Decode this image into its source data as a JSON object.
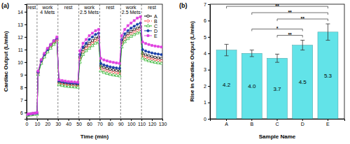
{
  "chart_data": [
    {
      "type": "line",
      "title": "(a)",
      "x_label": "Time (min)",
      "y_label": "Cardiac Output (L/min)",
      "x": [
        0,
        2,
        4,
        6,
        8,
        10,
        11,
        14,
        17,
        20,
        23,
        26,
        29,
        31,
        34,
        37,
        40,
        43,
        46,
        49,
        51,
        54,
        57,
        60,
        63,
        66,
        69,
        71,
        74,
        77,
        80,
        83,
        86,
        89,
        91,
        94,
        97,
        100,
        103,
        106,
        109,
        111,
        114,
        117,
        120,
        123,
        126,
        129
      ],
      "series": [
        {
          "name": "A",
          "color": "#000000",
          "marker": "square",
          "line_style": "solid",
          "values": [
            5.8,
            5.85,
            5.85,
            5.9,
            5.9,
            5.9,
            9.2,
            10.1,
            10.6,
            11.0,
            11.3,
            11.6,
            11.8,
            8.4,
            8.34,
            8.3,
            8.26,
            8.24,
            8.22,
            8.2,
            10.4,
            11.0,
            11.3,
            11.5,
            11.7,
            11.9,
            12.0,
            9.7,
            9.58,
            9.5,
            9.43,
            9.38,
            9.34,
            9.3,
            11.6,
            12.02,
            12.26,
            12.44,
            12.58,
            12.7,
            12.8,
            10.7,
            10.58,
            10.5,
            10.43,
            10.38,
            10.34,
            10.3
          ]
        },
        {
          "name": "B",
          "color": "#ff3030",
          "marker": "circle",
          "line_style": "dashed",
          "values": [
            5.8,
            5.8,
            5.85,
            5.85,
            5.9,
            5.9,
            9.1,
            10.0,
            10.5,
            10.9,
            11.2,
            11.5,
            11.7,
            8.3,
            8.24,
            8.2,
            8.16,
            8.14,
            8.12,
            8.1,
            10.2,
            10.8,
            11.1,
            11.3,
            11.5,
            11.7,
            11.8,
            9.5,
            9.38,
            9.3,
            9.23,
            9.18,
            9.14,
            9.1,
            11.4,
            11.82,
            12.06,
            12.24,
            12.38,
            12.5,
            12.6,
            10.5,
            10.38,
            10.3,
            10.23,
            10.18,
            10.14,
            10.1
          ]
        },
        {
          "name": "C",
          "color": "#22b022",
          "marker": "triangle",
          "line_style": "solid",
          "values": [
            5.75,
            5.8,
            5.8,
            5.85,
            5.85,
            5.85,
            9.0,
            9.9,
            10.4,
            10.8,
            11.1,
            11.4,
            11.6,
            8.2,
            8.14,
            8.1,
            8.06,
            8.04,
            8.02,
            8.0,
            10.0,
            10.6,
            10.9,
            11.1,
            11.3,
            11.5,
            11.6,
            9.3,
            9.18,
            9.1,
            9.03,
            8.98,
            8.94,
            8.9,
            11.2,
            11.62,
            11.86,
            12.04,
            12.18,
            12.3,
            12.4,
            10.3,
            10.18,
            10.1,
            10.03,
            9.98,
            9.94,
            9.9
          ]
        },
        {
          "name": "D",
          "color": "#1a3fa8",
          "marker": "filled_circle",
          "line_style": "solid",
          "values": [
            5.85,
            5.85,
            5.9,
            5.9,
            5.95,
            5.95,
            9.2,
            10.1,
            10.6,
            11.0,
            11.4,
            11.7,
            11.9,
            8.5,
            8.44,
            8.4,
            8.36,
            8.34,
            8.32,
            8.3,
            10.6,
            11.2,
            11.5,
            11.8,
            12.0,
            12.2,
            12.3,
            9.9,
            9.78,
            9.7,
            9.63,
            9.58,
            9.54,
            9.5,
            11.8,
            12.25,
            12.5,
            12.7,
            12.85,
            13.0,
            13.1,
            11.0,
            10.88,
            10.8,
            10.73,
            10.68,
            10.64,
            10.6
          ]
        },
        {
          "name": "E",
          "color": "#e040e0",
          "marker": "filled_square",
          "line_style": "solid",
          "values": [
            5.85,
            5.9,
            5.9,
            5.95,
            5.95,
            6.0,
            9.3,
            10.2,
            10.7,
            11.1,
            11.4,
            11.7,
            12.0,
            8.6,
            8.54,
            8.5,
            8.46,
            8.44,
            8.42,
            8.4,
            10.9,
            11.5,
            11.8,
            12.1,
            12.3,
            12.5,
            12.6,
            10.3,
            10.18,
            10.1,
            10.03,
            9.98,
            9.94,
            9.9,
            12.1,
            12.6,
            12.9,
            13.1,
            13.3,
            13.5,
            13.6,
            11.6,
            11.48,
            11.4,
            11.33,
            11.28,
            11.24,
            11.2
          ]
        }
      ],
      "phases": [
        {
          "label": [
            "rest"
          ],
          "start": 0,
          "end": 10
        },
        {
          "label": [
            "work",
            "4 Mets"
          ],
          "start": 10,
          "end": 30
        },
        {
          "label": [
            "rest"
          ],
          "start": 30,
          "end": 50
        },
        {
          "label": [
            "work",
            "2.5 Mets"
          ],
          "start": 50,
          "end": 70
        },
        {
          "label": [
            "rest"
          ],
          "start": 70,
          "end": 90
        },
        {
          "label": [
            "work",
            "2.5 Mets"
          ],
          "start": 90,
          "end": 110
        },
        {
          "label": [
            "rest"
          ],
          "start": 110,
          "end": 130
        }
      ],
      "xlim": [
        0,
        130
      ],
      "xticks": [
        0,
        10,
        20,
        30,
        40,
        50,
        60,
        70,
        80,
        90,
        100,
        110,
        120,
        130
      ],
      "ylim": [
        5.5,
        14.6
      ],
      "yticks": [
        6,
        7,
        8,
        9,
        10,
        11,
        12,
        13,
        14
      ],
      "grid": false,
      "legend": "upper right"
    },
    {
      "type": "bar",
      "title": "(b)",
      "x_label": "Sample Name",
      "y_label": "Rise in Cardiac Output (L/min)",
      "categories": [
        "A",
        "B",
        "C",
        "D",
        "E"
      ],
      "values": [
        4.2,
        4.0,
        3.7,
        4.5,
        5.3
      ],
      "value_labels": [
        "4.2",
        "4.0",
        "3.7",
        "4.5",
        "5.3"
      ],
      "errors": [
        0.35,
        0.2,
        0.25,
        0.3,
        0.5
      ],
      "color": "#62e3e8",
      "data_labels": true,
      "significance": [
        {
          "pair": [
            "C",
            "D"
          ],
          "label": "**"
        },
        {
          "pair": [
            "B",
            "D"
          ],
          "label": "*"
        },
        {
          "pair": [
            "C",
            "E"
          ],
          "label": "**"
        },
        {
          "pair": [
            "B",
            "E"
          ],
          "label": "**"
        },
        {
          "pair": [
            "A",
            "E"
          ],
          "label": "**"
        }
      ],
      "ylim": [
        0,
        7
      ],
      "yticks": [
        0,
        1,
        2,
        3,
        4,
        5,
        6,
        7
      ],
      "grid": false
    }
  ]
}
